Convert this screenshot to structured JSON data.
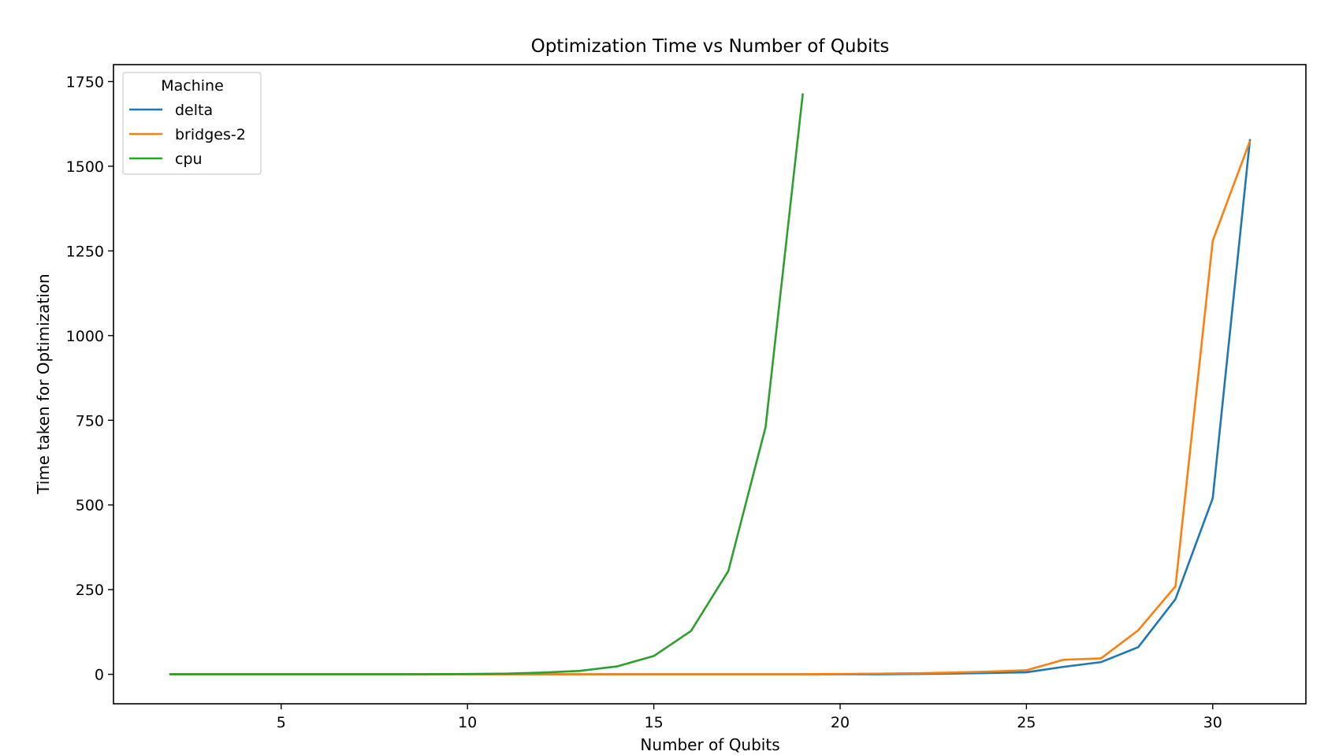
{
  "chart_data": {
    "type": "line",
    "title": "Optimization Time vs Number of Qubits",
    "xlabel": "Number of Qubits",
    "ylabel": "Time taken for Optimization",
    "xlim": [
      0.5,
      32.5
    ],
    "ylim": [
      -87,
      1800
    ],
    "xticks": [
      5,
      10,
      15,
      20,
      25,
      30
    ],
    "yticks": [
      0,
      250,
      500,
      750,
      1000,
      1250,
      1500,
      1750
    ],
    "grid": false,
    "legend": {
      "title": "Machine",
      "position": "top-left"
    },
    "series": [
      {
        "name": "delta",
        "color": "#1f77b4",
        "x": [
          2,
          3,
          4,
          5,
          6,
          7,
          8,
          9,
          10,
          11,
          12,
          13,
          14,
          15,
          16,
          17,
          18,
          19,
          20,
          21,
          22,
          23,
          24,
          25,
          26,
          27,
          28,
          29,
          30,
          31
        ],
        "y": [
          0,
          0,
          0,
          0,
          0,
          0,
          0,
          0,
          0,
          0,
          0,
          0,
          0,
          0,
          0,
          0,
          0,
          0,
          0,
          0,
          1,
          2,
          4,
          6,
          22,
          36,
          80,
          222,
          520,
          1580
        ]
      },
      {
        "name": "bridges-2",
        "color": "#ff7f0e",
        "x": [
          2,
          3,
          4,
          5,
          6,
          7,
          8,
          9,
          10,
          11,
          12,
          13,
          14,
          15,
          16,
          17,
          18,
          19,
          20,
          21,
          22,
          23,
          24,
          25,
          26,
          27,
          28,
          29,
          30,
          31
        ],
        "y": [
          0,
          0,
          0,
          0,
          0,
          0,
          0,
          0,
          0,
          0,
          0,
          0,
          0,
          0,
          0,
          0,
          0,
          0,
          1,
          2,
          3,
          5,
          8,
          12,
          43,
          47,
          130,
          260,
          1280,
          1575
        ]
      },
      {
        "name": "cpu",
        "color": "#2ca02c",
        "x": [
          2,
          3,
          4,
          5,
          6,
          7,
          8,
          9,
          10,
          11,
          12,
          13,
          14,
          15,
          16,
          17,
          18,
          19
        ],
        "y": [
          0,
          0,
          0,
          0,
          0,
          0,
          0,
          0.5,
          1,
          2,
          5,
          10,
          23,
          54,
          128,
          305,
          730,
          1715
        ]
      }
    ]
  }
}
